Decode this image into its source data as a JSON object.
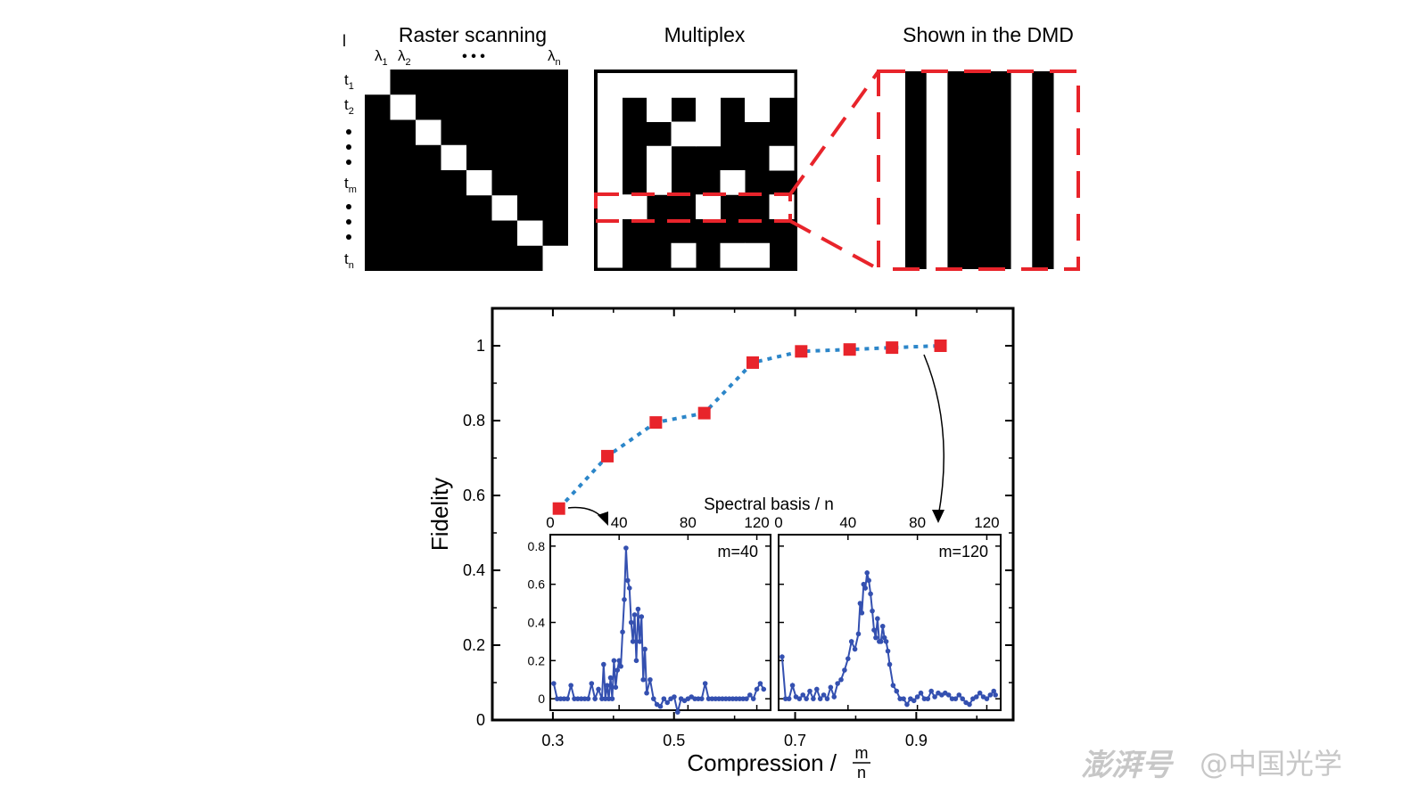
{
  "panels": {
    "raster": {
      "title": "Raster scanning",
      "corner_mark": "l",
      "lambda_labels": [
        {
          "base": "λ",
          "sub": "1"
        },
        {
          "base": "λ",
          "sub": "2"
        },
        {
          "base": "λ",
          "sub": "n"
        }
      ],
      "t_labels": [
        {
          "base": "t",
          "sub": "1"
        },
        {
          "base": "t",
          "sub": "2"
        },
        {
          "base": "t",
          "sub": "m"
        },
        {
          "base": "t",
          "sub": "n"
        }
      ],
      "ellipsis": "• • •",
      "grid_size": 8
    },
    "multiplex": {
      "title": "Multiplex",
      "grid_rows": 8,
      "grid_cols": 8,
      "pattern": [
        [
          1,
          1,
          1,
          1,
          1,
          1,
          1,
          1
        ],
        [
          1,
          0,
          1,
          0,
          1,
          0,
          1,
          0
        ],
        [
          1,
          0,
          0,
          1,
          1,
          0,
          0,
          0
        ],
        [
          1,
          0,
          1,
          0,
          0,
          0,
          0,
          1
        ],
        [
          1,
          0,
          1,
          0,
          0,
          1,
          0,
          0
        ],
        [
          1,
          1,
          0,
          0,
          1,
          0,
          0,
          1
        ],
        [
          1,
          0,
          0,
          0,
          0,
          0,
          0,
          0
        ],
        [
          1,
          0,
          0,
          1,
          0,
          1,
          1,
          0
        ]
      ],
      "highlight_color": "#e8242b"
    },
    "dmd": {
      "title": "Shown in the DMD",
      "stripes": [
        0,
        1,
        0,
        0,
        0,
        1,
        0
      ],
      "highlight_color": "#e8242b"
    }
  },
  "chart_data": [
    {
      "type": "scatter",
      "title": "",
      "xlabel": "Compression / m/n",
      "xlabel_text": "Compression /",
      "xlabel_fraction": {
        "numerator": "m",
        "denominator": "n"
      },
      "ylabel": "Fidelity",
      "xlim": [
        0.2,
        1.06
      ],
      "ylim": [
        0,
        1.1
      ],
      "xticks": [
        "0.3",
        "0.5",
        "0.7",
        "0.9"
      ],
      "xtick_values": [
        0.3,
        0.5,
        0.7,
        0.9
      ],
      "yticks": [
        "0",
        "0.2",
        "0.4",
        "0.6",
        "0.8",
        "1"
      ],
      "ytick_values": [
        0,
        0.2,
        0.4,
        0.6,
        0.8,
        1
      ],
      "grid": false,
      "marker_color": "#e8242b",
      "line_color": "#2c86c9",
      "line_style": "dotted",
      "x": [
        0.31,
        0.39,
        0.47,
        0.55,
        0.63,
        0.71,
        0.79,
        0.86,
        0.94
      ],
      "y": [
        0.565,
        0.705,
        0.795,
        0.82,
        0.955,
        0.985,
        0.99,
        0.995,
        1.0
      ]
    },
    {
      "type": "line",
      "annotation": "m=40",
      "xlabel": "Spectral basis / n",
      "xlim": [
        0,
        128
      ],
      "ylim": [
        -0.06,
        0.86
      ],
      "xticks": [
        "0",
        "40",
        "80",
        "120"
      ],
      "xtick_values": [
        0,
        40,
        80,
        120
      ],
      "yticks": [
        "0",
        "0.2",
        "0.4",
        "0.6",
        "0.8"
      ],
      "ytick_values": [
        0,
        0.2,
        0.4,
        0.6,
        0.8
      ],
      "color": "#3450b0",
      "x": [
        2,
        4,
        6,
        8,
        10,
        12,
        14,
        16,
        18,
        20,
        22,
        24,
        26,
        28,
        30,
        31,
        32,
        33,
        34,
        35,
        36,
        37,
        38,
        39,
        40,
        41,
        42,
        43,
        44,
        45,
        46,
        47,
        48,
        49,
        50,
        51,
        52,
        53,
        54,
        55,
        56,
        58,
        60,
        62,
        64,
        66,
        68,
        70,
        72,
        74,
        76,
        78,
        80,
        82,
        84,
        86,
        88,
        90,
        92,
        94,
        96,
        98,
        100,
        102,
        104,
        106,
        108,
        110,
        112,
        114,
        116,
        118,
        120,
        122,
        124
      ],
      "y": [
        0.08,
        0.0,
        0.0,
        0.0,
        0.0,
        0.07,
        0.0,
        0.0,
        0.0,
        0.0,
        0.0,
        0.08,
        0.0,
        0.05,
        0.0,
        0.18,
        0.0,
        0.07,
        0.0,
        0.11,
        0.0,
        0.2,
        0.06,
        0.15,
        0.2,
        0.17,
        0.35,
        0.52,
        0.79,
        0.62,
        0.58,
        0.4,
        0.3,
        0.44,
        0.2,
        0.47,
        0.3,
        0.43,
        0.1,
        0.26,
        0.03,
        0.1,
        0.0,
        -0.03,
        -0.04,
        0.0,
        -0.02,
        0.0,
        0.01,
        -0.07,
        0.0,
        -0.01,
        0.0,
        0.01,
        0.0,
        0.0,
        0.0,
        0.08,
        0.0,
        0.0,
        0.0,
        0.0,
        0.0,
        0.0,
        0.0,
        0.0,
        0.0,
        0.0,
        0.0,
        0.0,
        0.02,
        0.0,
        0.05,
        0.08,
        0.05
      ]
    },
    {
      "type": "line",
      "annotation": "m=120",
      "xlabel": "Spectral basis / n",
      "xlim": [
        0,
        128
      ],
      "ylim": [
        -0.06,
        0.86
      ],
      "xticks": [
        "0",
        "40",
        "80",
        "120"
      ],
      "xtick_values": [
        0,
        40,
        80,
        120
      ],
      "yticks": [
        "0",
        "0.2",
        "0.4",
        "0.6",
        "0.8"
      ],
      "ytick_values": [
        0,
        0.2,
        0.4,
        0.6,
        0.8
      ],
      "color": "#3450b0",
      "x": [
        2,
        4,
        6,
        8,
        10,
        12,
        14,
        16,
        18,
        20,
        22,
        24,
        26,
        28,
        30,
        32,
        34,
        36,
        38,
        40,
        42,
        44,
        46,
        47,
        48,
        49,
        50,
        51,
        52,
        53,
        54,
        55,
        56,
        57,
        58,
        59,
        60,
        61,
        62,
        63,
        64,
        66,
        68,
        70,
        72,
        74,
        76,
        78,
        80,
        82,
        84,
        86,
        88,
        90,
        92,
        94,
        96,
        98,
        100,
        102,
        104,
        106,
        108,
        110,
        112,
        114,
        116,
        118,
        120,
        122,
        124,
        125
      ],
      "y": [
        0.22,
        0.0,
        0.0,
        0.07,
        0.01,
        0.0,
        0.02,
        0.0,
        0.04,
        0.0,
        0.05,
        0.0,
        0.02,
        0.0,
        0.06,
        0.01,
        0.08,
        0.1,
        0.15,
        0.21,
        0.3,
        0.26,
        0.34,
        0.5,
        0.45,
        0.6,
        0.58,
        0.66,
        0.62,
        0.55,
        0.46,
        0.36,
        0.32,
        0.42,
        0.3,
        0.3,
        0.38,
        0.32,
        0.3,
        0.25,
        0.18,
        0.07,
        0.04,
        0.0,
        0.0,
        -0.03,
        0.0,
        -0.01,
        0.01,
        0.03,
        0.0,
        0.0,
        0.04,
        0.01,
        0.03,
        0.02,
        0.03,
        0.02,
        0.0,
        0.0,
        0.02,
        0.0,
        -0.02,
        -0.03,
        0.0,
        0.01,
        0.03,
        0.01,
        0.0,
        0.02,
        0.04,
        0.02
      ]
    }
  ],
  "watermark": {
    "logo_text": "澎湃号",
    "handle": "@中国光学"
  }
}
